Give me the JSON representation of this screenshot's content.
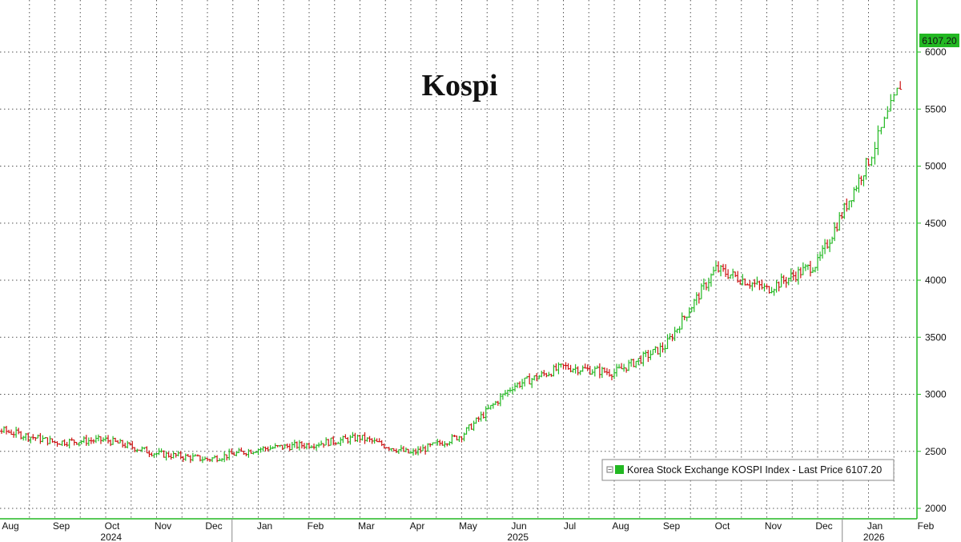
{
  "chart_data": {
    "type": "ohlc",
    "title": "Kospi",
    "y_ticks": [
      2000,
      2500,
      3000,
      3500,
      4000,
      4500,
      5000,
      5500,
      6000
    ],
    "ylim": [
      1950,
      6250
    ],
    "last_price_label": "6107.20",
    "last_price": 6107.2,
    "legend": "Korea Stock Exchange KOSPI Index - Last Price 6107.20",
    "x_month_labels": [
      "Aug",
      "Sep",
      "Oct",
      "Nov",
      "Dec",
      "Jan",
      "Feb",
      "Mar",
      "Apr",
      "May",
      "Jun",
      "Jul",
      "Aug",
      "Sep",
      "Oct",
      "Nov",
      "Dec",
      "Jan",
      "Feb"
    ],
    "x_month_index": [
      0,
      1,
      2,
      3,
      4,
      5,
      6,
      7,
      8,
      9,
      10,
      11,
      12,
      13,
      14,
      15,
      16,
      17,
      18
    ],
    "x_year_labels": [
      "2024",
      "2025",
      "2026"
    ],
    "x_year_month_index": [
      2.5,
      10.5,
      17.5
    ],
    "up_color": "#22b822",
    "down_color": "#cc1111",
    "axis_color": "#22b822",
    "monthly_closes": [
      {
        "month": "Aug 2024",
        "close": 2680
      },
      {
        "month": "Sep 2024",
        "close": 2580
      },
      {
        "month": "Oct 2024",
        "close": 2600
      },
      {
        "month": "Nov 2024",
        "close": 2480
      },
      {
        "month": "Dec 2024",
        "close": 2430
      },
      {
        "month": "Jan 2025",
        "close": 2520
      },
      {
        "month": "Feb 2025",
        "close": 2560
      },
      {
        "month": "Mar 2025",
        "close": 2620
      },
      {
        "month": "Apr 2025",
        "close": 2480
      },
      {
        "month": "May 2025",
        "close": 2640
      },
      {
        "month": "Jun 2025",
        "close": 3070
      },
      {
        "month": "Jul 2025",
        "close": 3240
      },
      {
        "month": "Aug 2025",
        "close": 3190
      },
      {
        "month": "Sep 2025",
        "close": 3420
      },
      {
        "month": "Oct 2025",
        "close": 4100
      },
      {
        "month": "Nov 2025",
        "close": 3920
      },
      {
        "month": "Dec 2025",
        "close": 4150
      },
      {
        "month": "Jan 2026",
        "close": 5050
      },
      {
        "month": "Feb 2026",
        "close": 6107.2
      }
    ]
  }
}
